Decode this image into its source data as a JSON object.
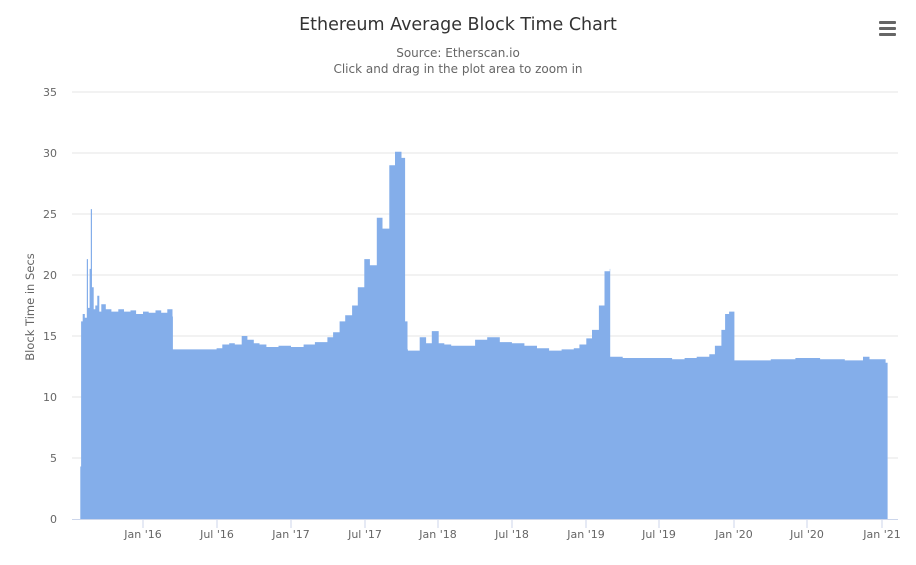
{
  "header": {
    "title": "Ethereum Average Block Time Chart",
    "source": "Source: Etherscan.io",
    "hint": "Click and drag in the plot area to zoom in",
    "menu_icon": "hamburger-menu-icon"
  },
  "colors": {
    "series": "#84aeea",
    "grid": "#e6e6e6",
    "axis": "#ccd6eb",
    "text": "#666666",
    "title": "#333333"
  },
  "chart_data": {
    "type": "area",
    "title": "Ethereum Average Block Time Chart",
    "subtitle": "Source: Etherscan.io",
    "xlabel": "",
    "ylabel": "Block Time in Secs",
    "ylim": [
      0,
      35
    ],
    "yticks": [
      0,
      5,
      10,
      15,
      20,
      25,
      30,
      35
    ],
    "xticks": [
      "Jan '16",
      "Jul '16",
      "Jan '17",
      "Jul '17",
      "Jan '18",
      "Jul '18",
      "Jan '19",
      "Jul '19",
      "Jan '20",
      "Jul '20",
      "Jan '21"
    ],
    "grid": true,
    "legend": false,
    "series": [
      {
        "name": "Block Time",
        "x": [
          "2015-07-30",
          "2015-08-01",
          "2015-08-05",
          "2015-08-10",
          "2015-08-15",
          "2015-08-18",
          "2015-08-22",
          "2015-08-25",
          "2015-08-28",
          "2015-09-01",
          "2015-09-05",
          "2015-09-10",
          "2015-09-15",
          "2015-09-20",
          "2015-10-01",
          "2015-10-15",
          "2015-11-01",
          "2015-11-15",
          "2015-12-01",
          "2015-12-15",
          "2016-01-01",
          "2016-01-15",
          "2016-02-01",
          "2016-02-15",
          "2016-03-01",
          "2016-03-14",
          "2016-03-15",
          "2016-04-01",
          "2016-05-01",
          "2016-06-01",
          "2016-07-01",
          "2016-07-15",
          "2016-08-01",
          "2016-08-15",
          "2016-09-01",
          "2016-09-15",
          "2016-10-01",
          "2016-10-15",
          "2016-11-01",
          "2016-12-01",
          "2017-01-01",
          "2017-02-01",
          "2017-03-01",
          "2017-04-01",
          "2017-04-15",
          "2017-05-01",
          "2017-05-15",
          "2017-06-01",
          "2017-06-15",
          "2017-07-01",
          "2017-07-15",
          "2017-08-01",
          "2017-08-15",
          "2017-09-01",
          "2017-09-15",
          "2017-10-01",
          "2017-10-10",
          "2017-10-16",
          "2017-10-17",
          "2017-11-01",
          "2017-11-15",
          "2017-12-01",
          "2017-12-15",
          "2018-01-01",
          "2018-01-15",
          "2018-02-01",
          "2018-03-01",
          "2018-04-01",
          "2018-05-01",
          "2018-06-01",
          "2018-07-01",
          "2018-08-01",
          "2018-09-01",
          "2018-10-01",
          "2018-11-01",
          "2018-12-01",
          "2018-12-15",
          "2019-01-01",
          "2019-01-15",
          "2019-02-01",
          "2019-02-15",
          "2019-02-28",
          "2019-03-01",
          "2019-04-01",
          "2019-05-01",
          "2019-06-01",
          "2019-07-01",
          "2019-08-01",
          "2019-09-01",
          "2019-10-01",
          "2019-11-01",
          "2019-11-15",
          "2019-12-01",
          "2019-12-10",
          "2019-12-20",
          "2020-01-01",
          "2020-01-02",
          "2020-02-01",
          "2020-04-01",
          "2020-06-01",
          "2020-08-01",
          "2020-10-01",
          "2020-11-15",
          "2020-12-01",
          "2021-01-01",
          "2021-01-10"
        ],
        "values": [
          4.3,
          16.2,
          16.8,
          16.5,
          21.3,
          17.3,
          20.5,
          25.4,
          19.0,
          17.2,
          17.5,
          18.3,
          17.0,
          17.6,
          17.2,
          17.0,
          17.2,
          17.0,
          17.1,
          16.8,
          17.0,
          16.9,
          17.1,
          16.9,
          17.2,
          16.6,
          13.9,
          13.9,
          13.9,
          13.9,
          14.0,
          14.3,
          14.4,
          14.3,
          15.0,
          14.7,
          14.4,
          14.3,
          14.1,
          14.2,
          14.1,
          14.3,
          14.5,
          14.9,
          15.3,
          16.2,
          16.7,
          17.5,
          19.0,
          21.3,
          20.8,
          24.7,
          23.8,
          29.0,
          30.1,
          29.6,
          16.2,
          13.9,
          13.8,
          13.8,
          14.9,
          14.4,
          15.4,
          14.4,
          14.3,
          14.2,
          14.2,
          14.7,
          14.9,
          14.5,
          14.4,
          14.2,
          14.0,
          13.8,
          13.9,
          14.0,
          14.3,
          14.8,
          15.5,
          17.5,
          20.3,
          20.5,
          13.3,
          13.2,
          13.2,
          13.2,
          13.2,
          13.1,
          13.2,
          13.3,
          13.5,
          14.2,
          15.5,
          16.8,
          17.0,
          17.0,
          13.0,
          13.0,
          13.1,
          13.2,
          13.1,
          13.0,
          13.3,
          13.1,
          13.1,
          12.8
        ]
      }
    ]
  }
}
